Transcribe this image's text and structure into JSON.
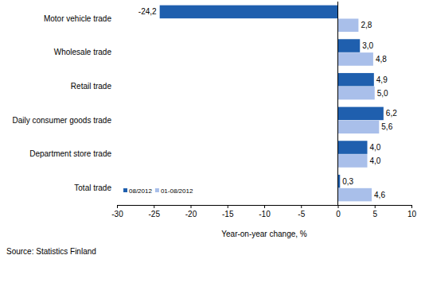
{
  "chart_data": {
    "type": "bar",
    "orientation": "horizontal",
    "categories": [
      "Motor vehicle trade",
      "Wholesale trade",
      "Retail trade",
      "Daily consumer goods trade",
      "Department store trade",
      "Total trade"
    ],
    "series": [
      {
        "name": "08/2012",
        "color": "#1f5fae",
        "values": [
          -24.2,
          3.0,
          4.9,
          6.2,
          4.0,
          0.3
        ],
        "value_labels": [
          "-24,2",
          "3,0",
          "4,9",
          "6,2",
          "4,0",
          "0,3"
        ]
      },
      {
        "name": "01-08/2012",
        "color": "#a9bfea",
        "values": [
          2.8,
          4.8,
          5.0,
          5.6,
          4.0,
          4.6
        ],
        "value_labels": [
          "2,8",
          "4,8",
          "5,0",
          "5,6",
          "4,0",
          "4,6"
        ]
      }
    ],
    "x_label": "Year-on-year change, %",
    "xlim": [
      -30,
      10
    ],
    "xticks": [
      -30,
      -25,
      -20,
      -15,
      -10,
      -5,
      0,
      5,
      10
    ],
    "grid": false,
    "legend": "lower left",
    "data_labels": true,
    "annotations": [
      "Source: Statistics Finland"
    ]
  }
}
